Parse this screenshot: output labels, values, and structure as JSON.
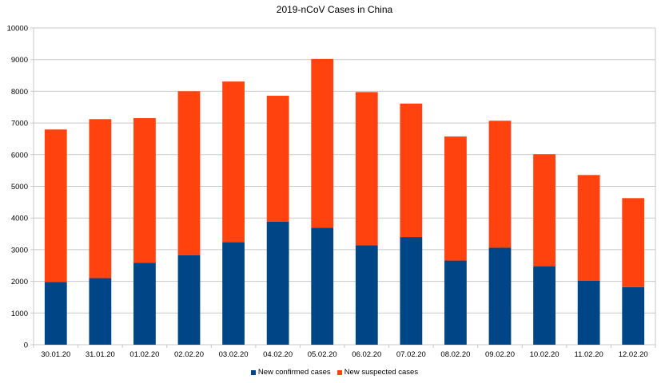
{
  "chart_data": {
    "type": "bar",
    "stacked": true,
    "title": "2019-nCoV Cases in China",
    "xlabel": "",
    "ylabel": "",
    "ylim": [
      0,
      10000
    ],
    "yticks": [
      0,
      1000,
      2000,
      3000,
      4000,
      5000,
      6000,
      7000,
      8000,
      9000,
      10000
    ],
    "grid": true,
    "legend_position": "bottom",
    "categories": [
      "30.01.20",
      "31.01.20",
      "01.02.20",
      "02.02.20",
      "03.02.20",
      "04.02.20",
      "05.02.20",
      "06.02.20",
      "07.02.20",
      "08.02.20",
      "09.02.20",
      "10.02.20",
      "11.02.20",
      "12.02.20"
    ],
    "series": [
      {
        "name": "New confirmed cases",
        "color": "#004586",
        "values": [
          1982,
          2102,
          2590,
          2829,
          3235,
          3887,
          3694,
          3143,
          3399,
          2656,
          3062,
          2478,
          2015,
          1820
        ]
      },
      {
        "name": "New suspected cases",
        "color": "#ff420e",
        "values": [
          4812,
          5019,
          4562,
          5173,
          5072,
          3971,
          5328,
          4833,
          4214,
          3916,
          4008,
          3536,
          3342,
          2807
        ]
      }
    ]
  }
}
